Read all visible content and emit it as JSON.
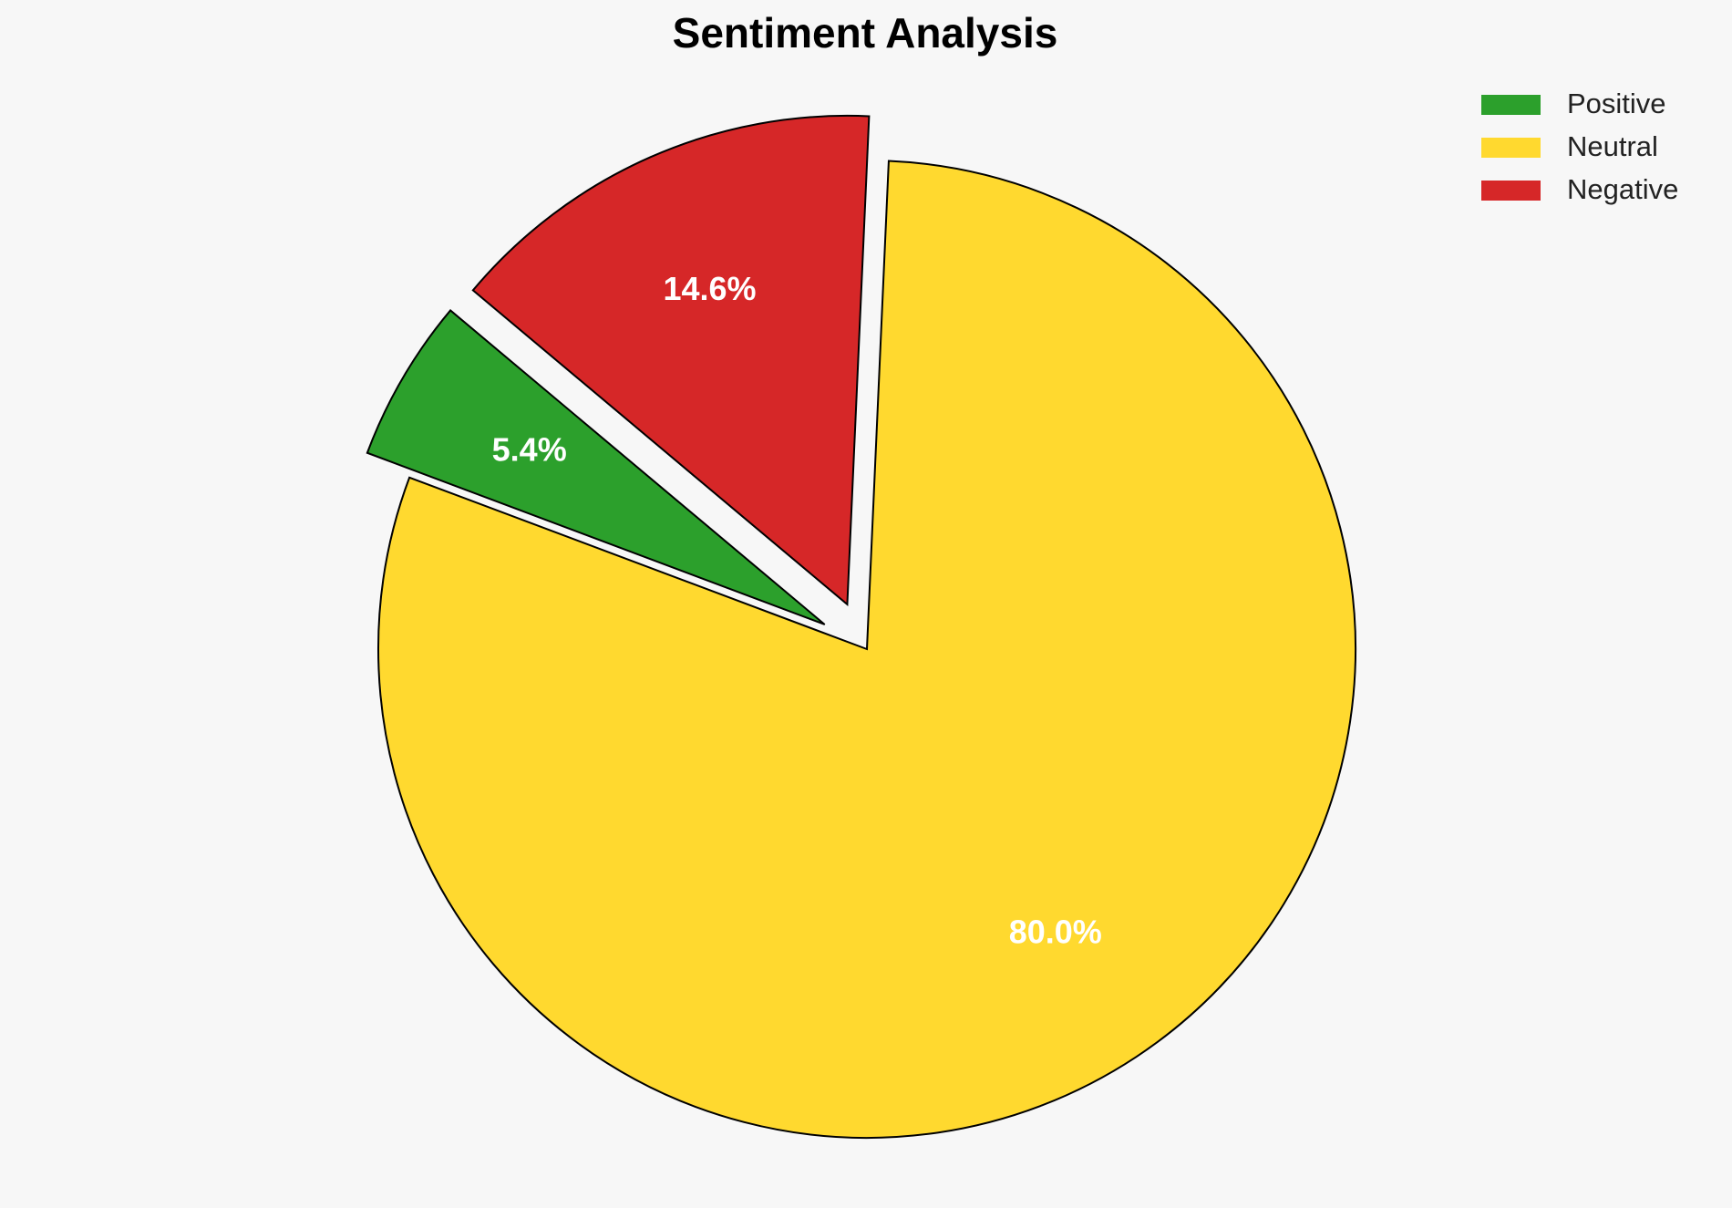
{
  "chart_data": {
    "type": "pie",
    "title": "Sentiment Analysis",
    "categories": [
      "Positive",
      "Neutral",
      "Negative"
    ],
    "values": [
      5.4,
      80.0,
      14.6
    ],
    "value_labels": [
      "5.4%",
      "80.0%",
      "14.6%"
    ],
    "colors": [
      "#2ca02c",
      "#ffd92f",
      "#d62728"
    ],
    "explode": [
      0.1,
      0,
      0.1
    ],
    "startangle": 140,
    "legend": "upper right"
  }
}
